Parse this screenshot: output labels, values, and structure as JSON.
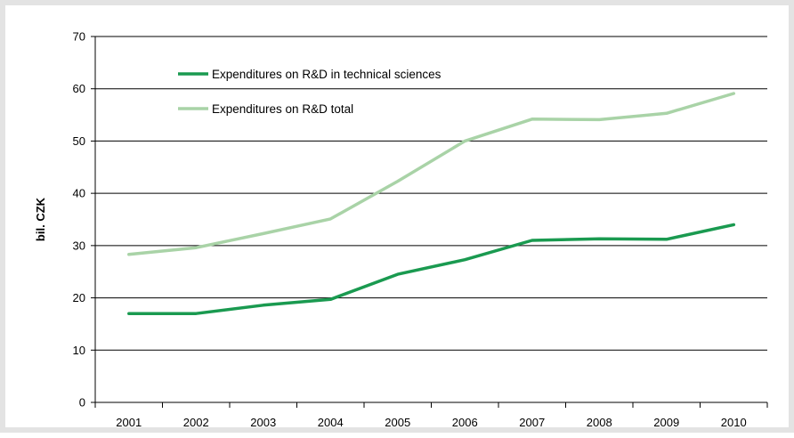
{
  "chart_data": {
    "type": "line",
    "title": "",
    "xlabel": "",
    "ylabel": "bil. CZK",
    "categories": [
      "2001",
      "2002",
      "2003",
      "2004",
      "2005",
      "2006",
      "2007",
      "2008",
      "2009",
      "2010"
    ],
    "ylim": [
      0,
      70
    ],
    "yticks": [
      0,
      10,
      20,
      30,
      40,
      50,
      60,
      70
    ],
    "grid": true,
    "legend_position": "top-left",
    "series": [
      {
        "name": "Expenditures on R&D in technical sciences",
        "color": "#1a9a50",
        "values": [
          17.0,
          17.0,
          18.6,
          19.7,
          24.5,
          27.3,
          31.0,
          31.3,
          31.2,
          34.0
        ]
      },
      {
        "name": "Expenditures on R&D total",
        "color": "#a9d3a7",
        "values": [
          28.3,
          29.6,
          32.3,
          35.1,
          42.3,
          50.0,
          54.2,
          54.1,
          55.3,
          59.1
        ]
      }
    ]
  }
}
